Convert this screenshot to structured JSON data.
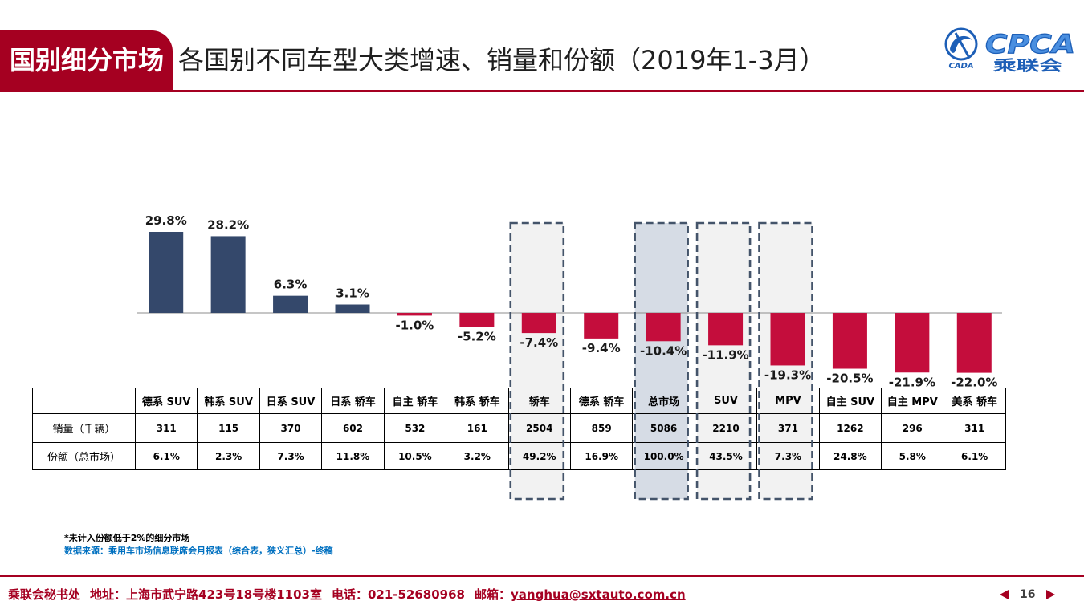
{
  "header": {
    "badge": "国别细分市场",
    "title": "各国别不同车型大类增速、销量和份额（2019年1-3月）"
  },
  "logo": {
    "emblem_text": "CADA",
    "name": "CPCA",
    "name_cn": "乘联会"
  },
  "chart_data": {
    "type": "bar",
    "categories": [
      "德系 SUV",
      "韩系 SUV",
      "日系 SUV",
      "日系 轿车",
      "自主 轿车",
      "韩系 轿车",
      "轿车",
      "德系 轿车",
      "总市场",
      "SUV",
      "MPV",
      "自主 SUV",
      "自主 MPV",
      "美系 轿车"
    ],
    "values": [
      29.8,
      28.2,
      6.3,
      3.1,
      -1.0,
      -5.2,
      -7.4,
      -9.4,
      -10.4,
      -11.9,
      -19.3,
      -20.5,
      -21.9,
      -22.0
    ],
    "labels": [
      "29.8%",
      "28.2%",
      "6.3%",
      "3.1%",
      "-1.0%",
      "-5.2%",
      "-7.4%",
      "-9.4%",
      "-10.4%",
      "-11.9%",
      "-19.3%",
      "-20.5%",
      "-21.9%",
      "-22.0%"
    ],
    "ylim": [
      -22.0,
      29.8
    ],
    "grid": false,
    "colors": {
      "positive": "#34486b",
      "negative": "#c40d3c",
      "baseline": "#8c8c8c",
      "highlight_border": "#44546a"
    },
    "highlight_fills": [
      null,
      null,
      null,
      null,
      null,
      null,
      "#f2f2f2",
      null,
      "#d6dce5",
      "#f2f2f2",
      "#f2f2f2",
      null,
      null,
      null
    ]
  },
  "table": {
    "rows": [
      {
        "label": "销量（千辆）",
        "values": [
          311,
          115,
          370,
          602,
          532,
          161,
          2504,
          859,
          5086,
          2210,
          371,
          1262,
          296,
          311
        ]
      },
      {
        "label": "份额（总市场）",
        "values": [
          "6.1%",
          "2.3%",
          "7.3%",
          "11.8%",
          "10.5%",
          "3.2%",
          "49.2%",
          "16.9%",
          "100.0%",
          "43.5%",
          "7.3%",
          "24.8%",
          "5.8%",
          "6.1%"
        ]
      }
    ]
  },
  "notes": {
    "footnote": "*未计入份额低于2%的细分市场",
    "source": "数据来源：乘用车市场信息联席会月报表（综合表，狭义汇总）-终稿"
  },
  "footer": {
    "org": "乘联会秘书处",
    "address": "地址：上海市武宁路423号18号楼1103室",
    "phone": "电话：021-52680968",
    "email_label": "邮箱：",
    "email": "yanghua@sxtauto.com.cn",
    "page": "16",
    "prev_icon": "triangle-left-icon",
    "next_icon": "triangle-right-icon"
  },
  "colors": {
    "brand": "#a50021",
    "source_text": "#0070c0",
    "page_number": "#404040",
    "logo_blue": "#1d5fb7"
  }
}
